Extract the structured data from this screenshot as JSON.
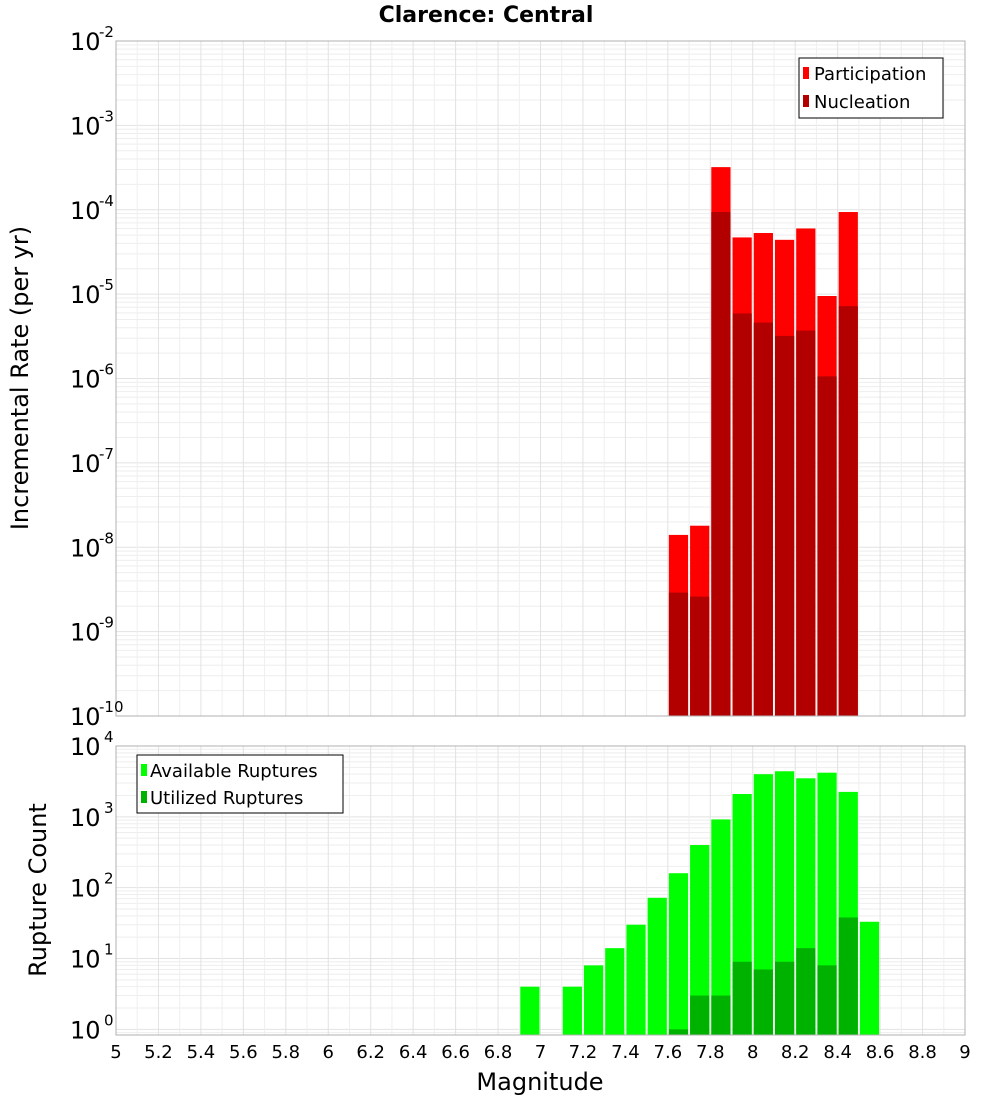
{
  "chart_data": [
    {
      "type": "bar",
      "title": "Clarence: Central",
      "xlabel": "",
      "ylabel": "Incremental Rate (per yr)",
      "yscale": "log",
      "ylim_exponents": [
        -10,
        -2
      ],
      "y_tick_base": "10",
      "y_tick_exponents": [
        "-10",
        "-9",
        "-8",
        "-7",
        "-6",
        "-5",
        "-4",
        "-3",
        "-2"
      ],
      "xlim": [
        5,
        9
      ],
      "bin_width": 0.1,
      "legend_position": "top-right",
      "series": [
        {
          "name": "Participation",
          "color": "#ff0000",
          "x": [
            7.65,
            7.75,
            7.85,
            7.95,
            8.05,
            8.15,
            8.25,
            8.35,
            8.45
          ],
          "values": [
            1.4e-08,
            1.8e-08,
            0.00032,
            4.7e-05,
            5.3e-05,
            4.4e-05,
            6e-05,
            9.5e-06,
            9.4e-05
          ]
        },
        {
          "name": "Nucleation",
          "color": "#b20000",
          "x": [
            7.65,
            7.75,
            7.85,
            7.95,
            8.05,
            8.15,
            8.25,
            8.35,
            8.45
          ],
          "values": [
            2.9e-09,
            2.6e-09,
            9.4e-05,
            5.9e-06,
            4.6e-06,
            3.2e-06,
            3.7e-06,
            1.06e-06,
            7.2e-06
          ]
        }
      ]
    },
    {
      "type": "bar",
      "title": "",
      "xlabel": "Magnitude",
      "ylabel": "Rupture Count",
      "yscale": "log",
      "ylim_exponents": [
        -0.08,
        4
      ],
      "y_tick_base": "10",
      "y_tick_exponents": [
        "0",
        "1",
        "2",
        "3",
        "4"
      ],
      "xlim": [
        5,
        9
      ],
      "bin_width": 0.1,
      "x_tick_labels": [
        "5",
        "5.2",
        "5.4",
        "5.6",
        "5.8",
        "6",
        "6.2",
        "6.4",
        "6.6",
        "6.8",
        "7",
        "7.2",
        "7.4",
        "7.6",
        "7.8",
        "8",
        "8.2",
        "8.4",
        "8.6",
        "8.8",
        "9"
      ],
      "legend_position": "top-left",
      "series": [
        {
          "name": "Available Ruptures",
          "color": "#00ff00",
          "x": [
            6.95,
            7.15,
            7.25,
            7.35,
            7.45,
            7.55,
            7.65,
            7.75,
            7.85,
            7.95,
            8.05,
            8.15,
            8.25,
            8.35,
            8.45,
            8.55
          ],
          "values": [
            4,
            4,
            8,
            14,
            30,
            72,
            160,
            400,
            920,
            2100,
            4000,
            4400,
            3500,
            4200,
            2250,
            33
          ]
        },
        {
          "name": "Utilized Ruptures",
          "color": "#00b200",
          "x": [
            7.65,
            7.75,
            7.85,
            7.95,
            8.05,
            8.15,
            8.25,
            8.35,
            8.45
          ],
          "values": [
            1,
            3,
            3,
            9,
            7,
            9,
            14,
            8,
            38
          ]
        }
      ]
    }
  ]
}
